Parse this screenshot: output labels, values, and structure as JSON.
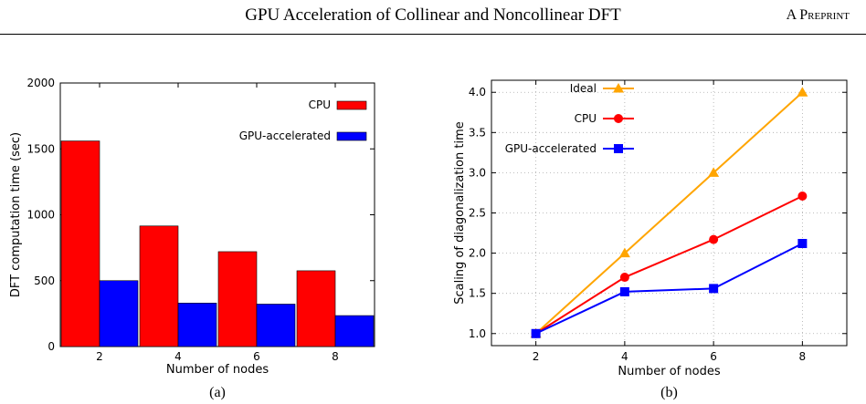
{
  "header": {
    "title": "GPU Acceleration of Collinear and Noncollinear DFT",
    "right_prefix": "A",
    "right_label": "Preprint"
  },
  "colors": {
    "cpu": "#ff0000",
    "gpu": "#0000ff",
    "ideal": "#ffa500"
  },
  "chart_data": [
    {
      "type": "bar",
      "caption": "(a)",
      "xlabel": "Number of nodes",
      "ylabel": "DFT computation time (sec)",
      "categories": [
        "2",
        "4",
        "6",
        "8"
      ],
      "ylim": [
        0,
        2000
      ],
      "yticks": [
        0,
        500,
        1000,
        1500,
        2000
      ],
      "grid": false,
      "legend": "top-right",
      "series": [
        {
          "name": "CPU",
          "values": [
            1560,
            915,
            720,
            575
          ]
        },
        {
          "name": "GPU-accelerated",
          "values": [
            500,
            330,
            322,
            235
          ]
        }
      ]
    },
    {
      "type": "line",
      "caption": "(b)",
      "xlabel": "Number of nodes",
      "ylabel": "Scaling of diagonalization time",
      "x": [
        2,
        4,
        6,
        8
      ],
      "xlim": [
        1,
        9
      ],
      "xticks": [
        2,
        4,
        6,
        8
      ],
      "ylim": [
        0.85,
        4.15
      ],
      "yticks": [
        "1.0",
        "1.5",
        "2.0",
        "2.5",
        "3.0",
        "3.5",
        "4.0"
      ],
      "grid": true,
      "legend": "top-left",
      "series": [
        {
          "name": "Ideal",
          "marker": "triangle",
          "values": [
            1.0,
            2.0,
            3.0,
            4.0
          ]
        },
        {
          "name": "CPU",
          "marker": "circle",
          "values": [
            1.0,
            1.7,
            2.17,
            2.71
          ]
        },
        {
          "name": "GPU-accelerated",
          "marker": "square",
          "values": [
            1.0,
            1.52,
            1.56,
            2.12
          ]
        }
      ]
    }
  ]
}
